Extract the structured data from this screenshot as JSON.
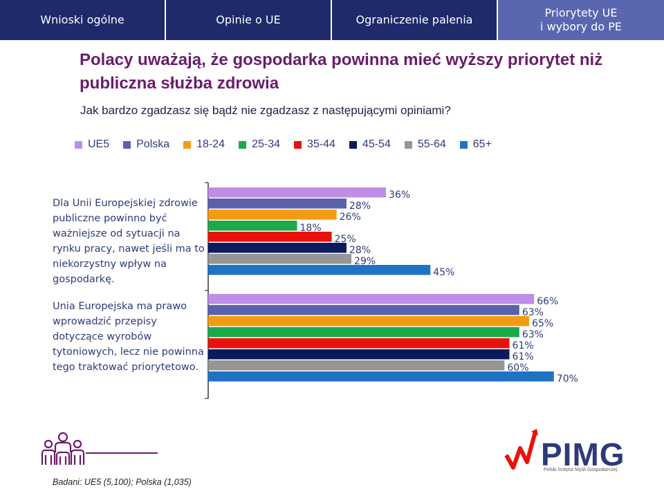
{
  "tabs": [
    {
      "label": "Wnioski ogólne",
      "active": false
    },
    {
      "label": "Opinie o UE",
      "active": false
    },
    {
      "label": "Ograniczenie palenia",
      "active": false
    },
    {
      "label": "Priorytety UE\ni wybory do PE",
      "active": true
    }
  ],
  "title": "Polacy uważają, że gospodarka powinna mieć wyższy priorytet niż publiczna służba zdrowia",
  "subtitle": "Jak bardzo zgadzasz się bądź nie zgadzasz z następującymi opiniami?",
  "footer_note": "Badani: UE5 (5,100); Polska (1,035)",
  "logo": {
    "text": "PIMG",
    "subtext": "Polski Instytut Myśli Gospodarczej",
    "icon": "people-group-icon"
  },
  "colors": {
    "title": "#6a1b6b",
    "tab_bg": "#1f2a6b",
    "tab_active": "#5a66b0"
  },
  "chart_data": {
    "type": "bar",
    "orientation": "horizontal",
    "categories": [
      "Dla Unii Europejskiej zdrowie publiczne powinno być ważniejsze od sytuacji na rynku pracy, nawet jeśli ma to niekorzystny wpływ na gospodarkę.",
      "Unia Europejska ma prawo wprowadzić przepisy dotyczące wyrobów tytoniowych, lecz nie powinna tego traktować priorytetowo."
    ],
    "series": [
      {
        "name": "UE5",
        "color": "#c08de6",
        "values": [
          36,
          66
        ],
        "labels": [
          "36%",
          "66%"
        ]
      },
      {
        "name": "Polska",
        "color": "#5b62ac",
        "values": [
          28,
          63
        ],
        "labels": [
          "28%",
          "63%"
        ]
      },
      {
        "name": "18-24",
        "color": "#f39c12",
        "values": [
          26,
          65
        ],
        "labels": [
          "26%",
          "65%"
        ]
      },
      {
        "name": "25-34",
        "color": "#1aaa4a",
        "values": [
          18,
          63
        ],
        "labels": [
          "18%",
          "63%"
        ]
      },
      {
        "name": "35-44",
        "color": "#e8120c",
        "values": [
          25,
          61
        ],
        "labels": [
          "25%",
          "61%"
        ]
      },
      {
        "name": "45-54",
        "color": "#0b1b5e",
        "values": [
          28,
          61
        ],
        "labels": [
          "28%",
          "61%"
        ]
      },
      {
        "name": "55-64",
        "color": "#969696",
        "values": [
          29,
          60
        ],
        "labels": [
          "29%",
          "60%"
        ]
      },
      {
        "name": "65+",
        "color": "#1f73c4",
        "values": [
          45,
          70
        ],
        "labels": [
          "45%",
          "70%"
        ]
      }
    ],
    "xlim": [
      0,
      100
    ],
    "legend": "top"
  }
}
